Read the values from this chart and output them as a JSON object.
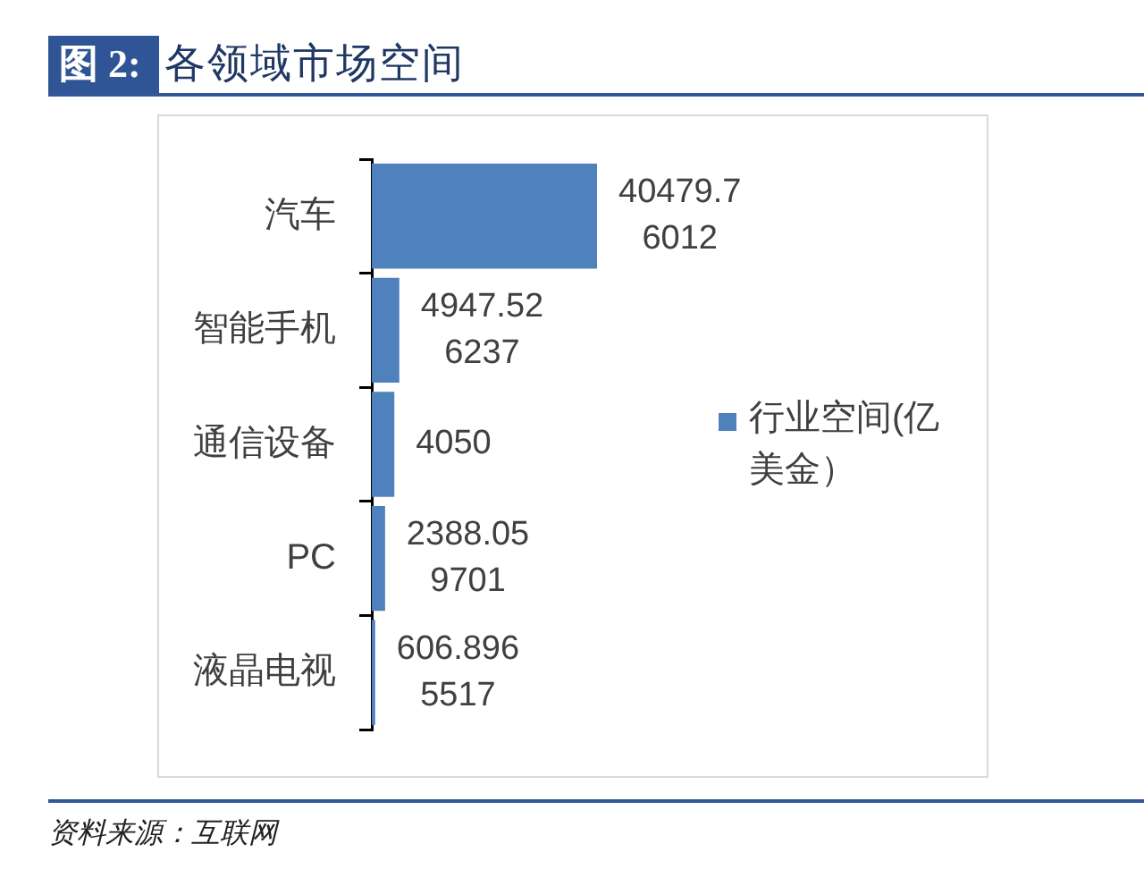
{
  "chart_data": {
    "type": "bar",
    "orientation": "horizontal",
    "title": "图 2: 各领域市场空间",
    "categories": [
      "汽车",
      "智能手机",
      "通信设备",
      "PC",
      "液晶电视"
    ],
    "series": [
      {
        "name": "行业空间(亿美金）",
        "color": "#4f81bd",
        "values": [
          40479.76012,
          4947.526237,
          4050,
          2388.059701,
          606.8965517
        ]
      }
    ],
    "data_labels": true,
    "legend": "right",
    "grid": false,
    "tick_labels": "y",
    "annotations": [
      "资料来源：互联网"
    ]
  }
}
